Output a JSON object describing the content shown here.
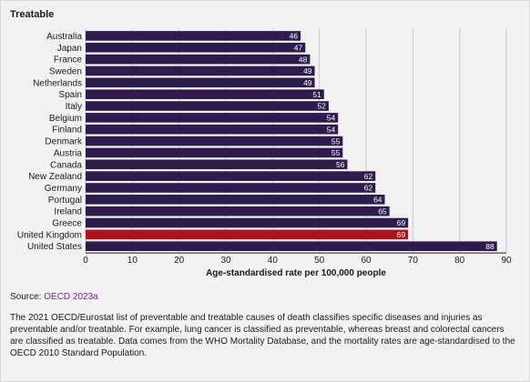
{
  "title": "Treatable",
  "source_label": "Source:",
  "source_link": "OECD 2023a",
  "note": "The 2021 OECD/Eurostat list of preventable and treatable causes of death classifies specific diseases and injuries as preventable and/or treatable. For example, lung cancer is classified as preventable, whereas breast and colorectal cancers are classified as treatable. Data comes from the WHO Mortality Database, and the mortality rates are age-standardised to the OECD 2010 Standard Population.",
  "colors": {
    "bar": "#2d1b4e",
    "highlight": "#b0121b",
    "grid": "#c8c8c8",
    "label": "#ffffff"
  },
  "chart_data": {
    "type": "bar",
    "orientation": "horizontal",
    "categories": [
      "Australia",
      "Japan",
      "France",
      "Sweden",
      "Netherlands",
      "Spain",
      "Italy",
      "Belgium",
      "Finland",
      "Denmark",
      "Austria",
      "Canada",
      "New Zealand",
      "Germany",
      "Portugal",
      "Ireland",
      "Greece",
      "United Kingdom",
      "United States"
    ],
    "values": [
      46,
      47,
      48,
      49,
      49,
      51,
      52,
      54,
      54,
      55,
      55,
      56,
      62,
      62,
      64,
      65,
      69,
      69,
      88
    ],
    "highlight": "United Kingdom",
    "xlabel": "Age-standardised rate per 100,000 people",
    "ylabel": "",
    "xlim": [
      0,
      90
    ],
    "xticks": [
      0,
      10,
      20,
      30,
      40,
      50,
      60,
      70,
      80,
      90
    ],
    "grid": "vertical",
    "data_labels": true
  }
}
